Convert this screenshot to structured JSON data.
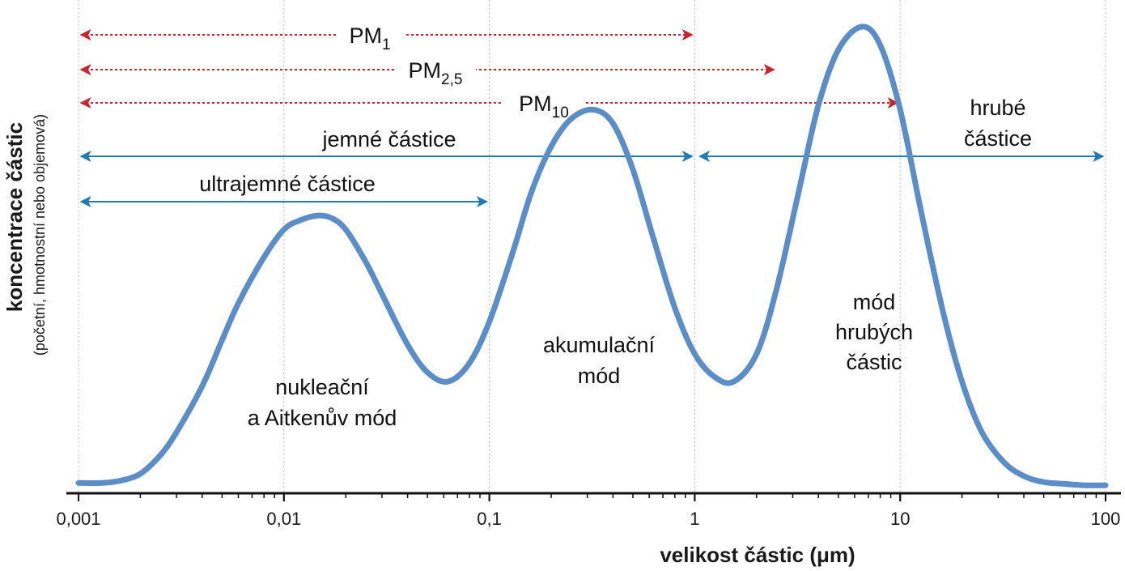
{
  "chart_data": {
    "type": "line",
    "xscale": "log",
    "xlim": [
      0.001,
      100
    ],
    "x_ticks": [
      "0,001",
      "0,01",
      "0,1",
      "1",
      "10",
      "100"
    ],
    "x_tick_values": [
      0.001,
      0.01,
      0.1,
      1,
      10,
      100
    ],
    "xlabel": "velikost částic (μm)",
    "ylabel": "koncentrace částic",
    "ylabel_sub": "(početní, hmotnostní nebo objemová)",
    "grid": "vertical dotted at decades",
    "series": [
      {
        "color": "#5b8dc8",
        "x": [
          0.001,
          0.0013,
          0.0016,
          0.002,
          0.0025,
          0.003,
          0.004,
          0.005,
          0.006,
          0.008,
          0.01,
          0.012,
          0.0145,
          0.017,
          0.02,
          0.025,
          0.03,
          0.04,
          0.05,
          0.063,
          0.08,
          0.1,
          0.13,
          0.16,
          0.2,
          0.25,
          0.32,
          0.4,
          0.5,
          0.63,
          0.8,
          1.0,
          1.25,
          1.55,
          2.0,
          2.5,
          3.2,
          4.0,
          5.0,
          6.5,
          8.0,
          10.0,
          12.5,
          16.0,
          20.0,
          25.0,
          32.0,
          40.0,
          50.0,
          63.0,
          80.0,
          100.0
        ],
        "y": [
          0.01,
          0.01,
          0.015,
          0.03,
          0.07,
          0.12,
          0.22,
          0.32,
          0.4,
          0.5,
          0.56,
          0.58,
          0.59,
          0.585,
          0.56,
          0.49,
          0.42,
          0.31,
          0.25,
          0.23,
          0.27,
          0.36,
          0.51,
          0.64,
          0.74,
          0.8,
          0.82,
          0.79,
          0.69,
          0.54,
          0.39,
          0.29,
          0.24,
          0.23,
          0.29,
          0.43,
          0.64,
          0.83,
          0.95,
          1.0,
          0.96,
          0.82,
          0.61,
          0.39,
          0.23,
          0.12,
          0.055,
          0.025,
          0.012,
          0.008,
          0.005,
          0.005
        ]
      }
    ],
    "ranges": [
      {
        "label": "PM",
        "sub": "1",
        "from": 0.001,
        "to": 1,
        "style": "dotted",
        "color": "#cc2229",
        "arrows": "both"
      },
      {
        "label": "PM",
        "sub": "2,5",
        "from": 0.001,
        "to": 2.5,
        "style": "dotted",
        "color": "#cc2229",
        "arrows": "both"
      },
      {
        "label": "PM",
        "sub": "10",
        "from": 0.001,
        "to": 10,
        "style": "dotted",
        "color": "#cc2229",
        "arrows": "both"
      },
      {
        "label": "jemné částice",
        "from": 0.001,
        "to": 1,
        "style": "solid",
        "color": "#1f7ab8",
        "arrows": "both"
      },
      {
        "label": "ultrajemné částice",
        "from": 0.001,
        "to": 0.1,
        "style": "solid",
        "color": "#1f7ab8",
        "arrows": "both"
      },
      {
        "label": "hrubé",
        "label2": "částice",
        "from": 1,
        "to": 100,
        "style": "solid",
        "color": "#1f7ab8",
        "arrows": "both"
      }
    ],
    "annotations": [
      {
        "lines": [
          "nukleační",
          "a Aitkenův mód"
        ]
      },
      {
        "lines": [
          "akumulační",
          "mód"
        ]
      },
      {
        "lines": [
          "mód",
          "hrubých",
          "částic"
        ]
      }
    ]
  }
}
